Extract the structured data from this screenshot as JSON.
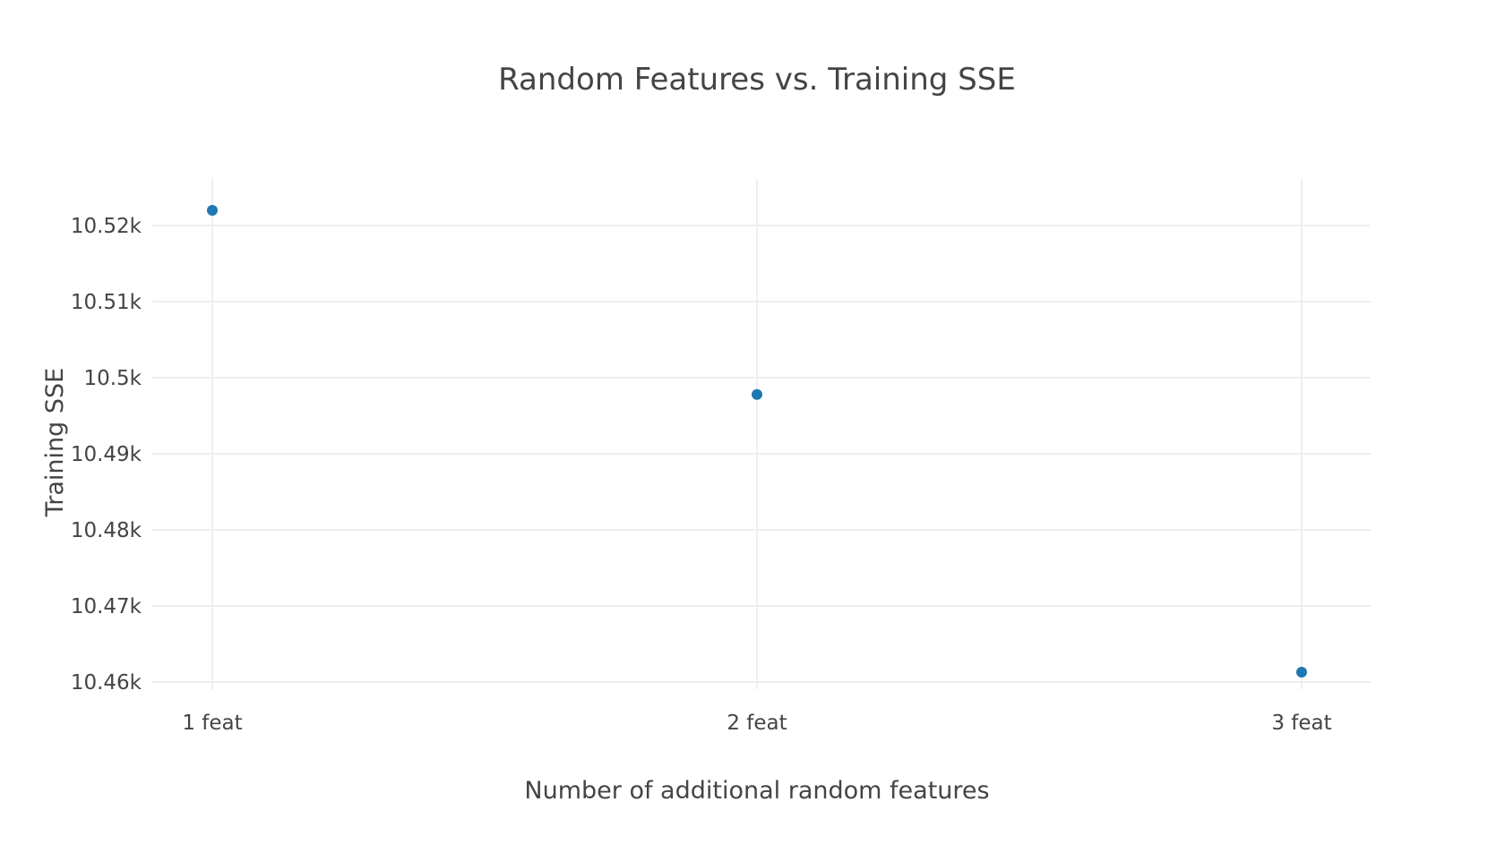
{
  "chart_data": {
    "type": "scatter",
    "title": "Random Features vs. Training SSE",
    "xlabel": "Number of additional random features",
    "ylabel": "Training SSE",
    "categories": [
      "1 feat",
      "2 feat",
      "3 feat"
    ],
    "series": [
      {
        "color": "#1f77b4",
        "points": [
          {
            "x": "1 feat",
            "y": 10522
          },
          {
            "x": "2 feat",
            "y": 10497.8
          },
          {
            "x": "3 feat",
            "y": 10461.3
          }
        ]
      }
    ],
    "y_ticks": [
      {
        "value": 10460,
        "label": "10.46k"
      },
      {
        "value": 10470,
        "label": "10.47k"
      },
      {
        "value": 10480,
        "label": "10.48k"
      },
      {
        "value": 10490,
        "label": "10.49k"
      },
      {
        "value": 10500,
        "label": "10.5k"
      },
      {
        "value": 10510,
        "label": "10.51k"
      },
      {
        "value": 10520,
        "label": "10.52k"
      }
    ],
    "ylim": [
      10458,
      10526
    ],
    "grid": true,
    "legend": "none"
  }
}
